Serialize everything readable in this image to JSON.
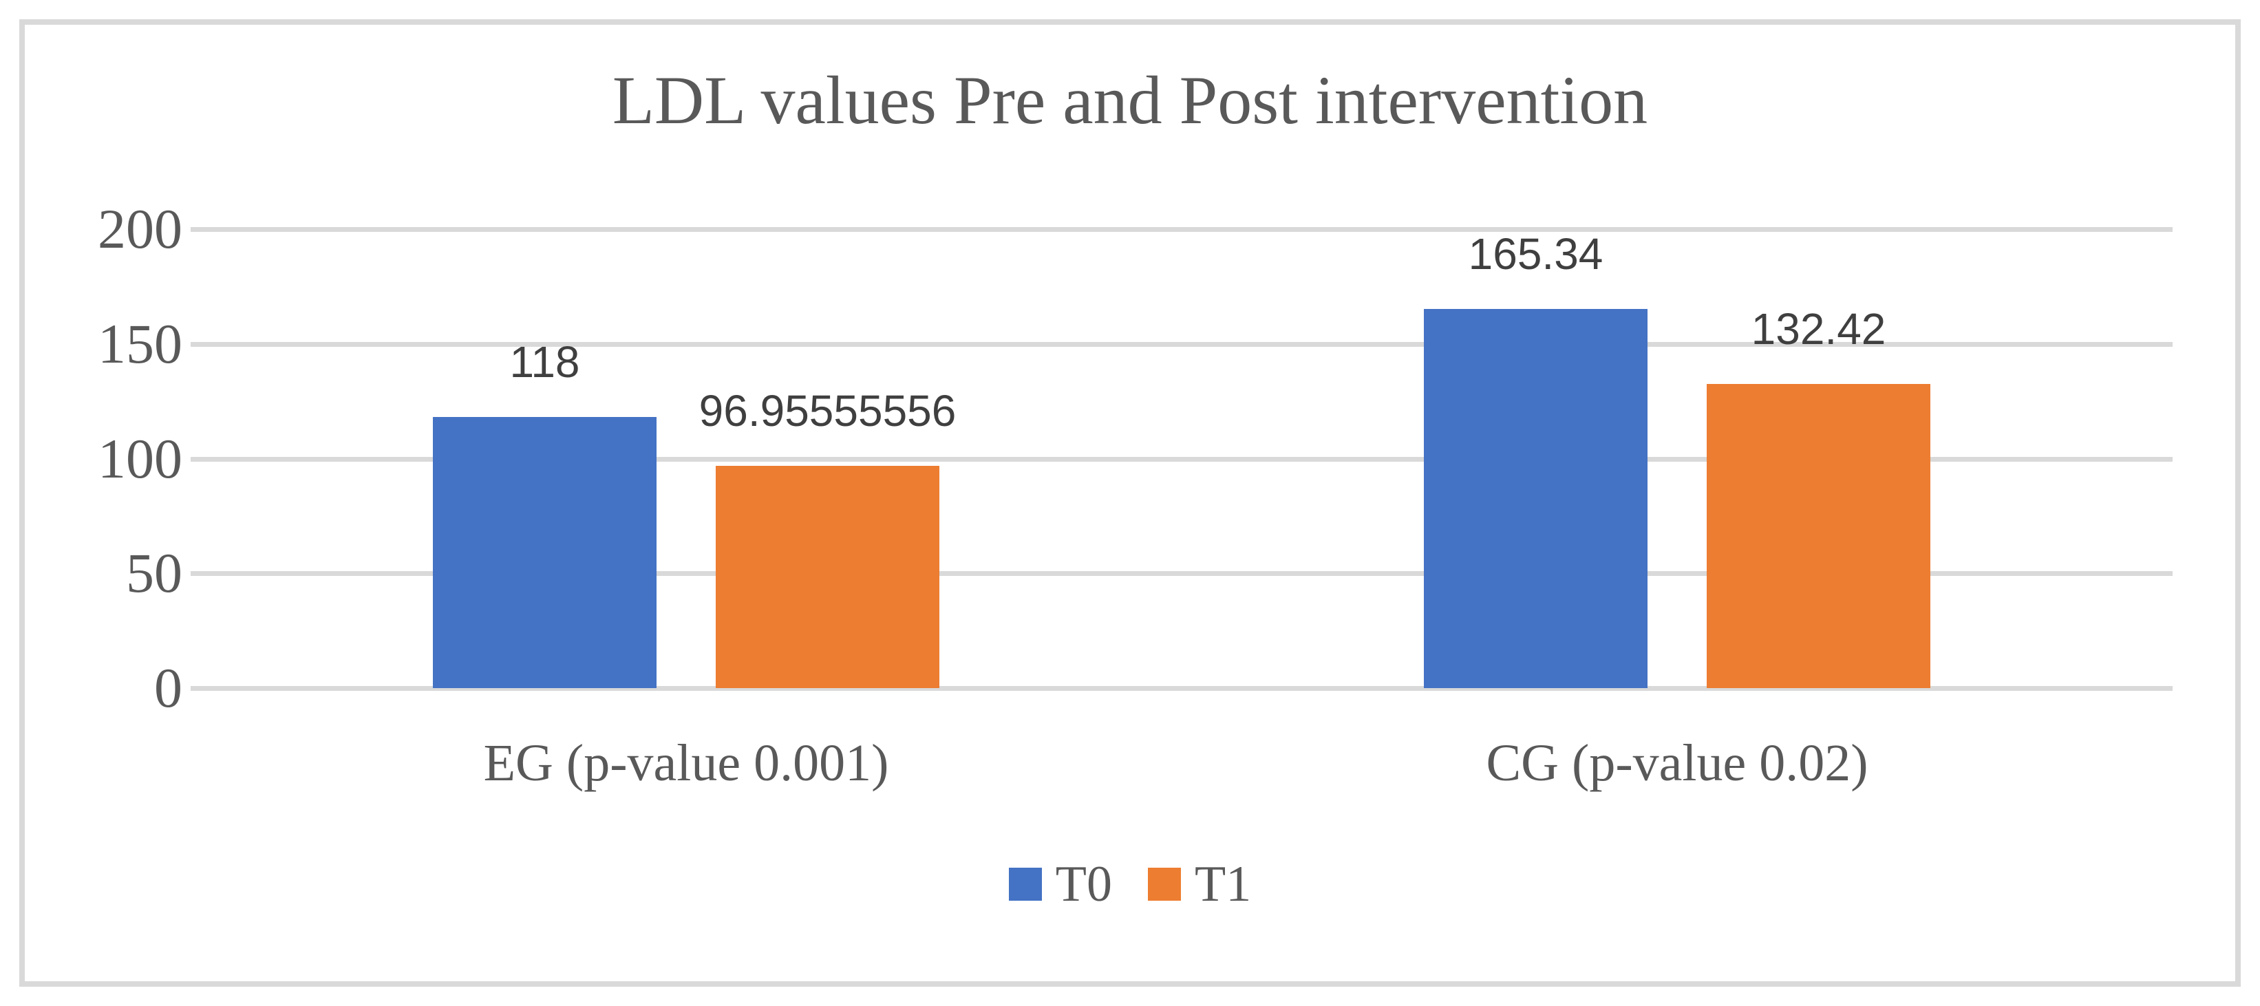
{
  "chart_data": {
    "type": "bar",
    "title": "LDL values Pre and Post intervention",
    "categories": [
      "EG (p-value 0.001)",
      "CG (p-value 0.02)"
    ],
    "series": [
      {
        "name": "T0",
        "color": "#4472C4",
        "values": [
          118,
          165.34
        ],
        "labels": [
          "118",
          "165.34"
        ]
      },
      {
        "name": "T1",
        "color": "#ED7D31",
        "values": [
          96.95555556,
          132.42
        ],
        "labels": [
          "96.95555556",
          "132.42"
        ]
      }
    ],
    "y_axis": {
      "min": 0,
      "max": 200,
      "ticks": [
        0,
        50,
        100,
        150,
        200
      ]
    },
    "grid": true,
    "legend_position": "bottom",
    "colors": {
      "gridline": "#D9D9D9",
      "frame_border": "#D9D9D9",
      "axis_text": "#595959",
      "data_label_text": "#3F3F3F",
      "background": "#FFFFFF"
    }
  }
}
